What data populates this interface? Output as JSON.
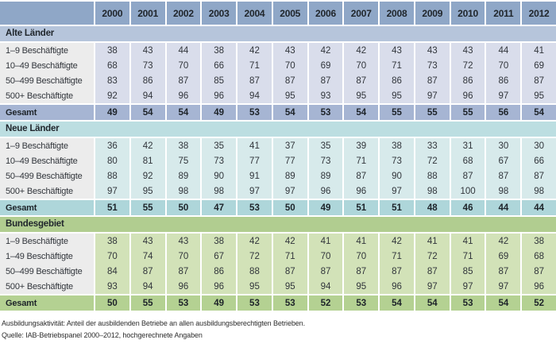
{
  "table": {
    "corner_label": "",
    "years": [
      "2000",
      "2001",
      "2002",
      "2003",
      "2004",
      "2005",
      "2006",
      "2007",
      "2008",
      "2009",
      "2010",
      "2011",
      "2012"
    ],
    "sections": [
      {
        "title": "Alte Länder",
        "theme": "blue",
        "rows": [
          {
            "label": "1–9 Beschäftigte",
            "values": [
              38,
              43,
              44,
              38,
              42,
              43,
              42,
              42,
              43,
              43,
              43,
              44,
              41
            ]
          },
          {
            "label": "10–49 Beschäftigte",
            "values": [
              68,
              73,
              70,
              66,
              71,
              70,
              69,
              70,
              71,
              73,
              72,
              70,
              69
            ]
          },
          {
            "label": "50–499 Beschäftigte",
            "values": [
              83,
              86,
              87,
              85,
              87,
              87,
              87,
              87,
              86,
              87,
              86,
              86,
              87
            ]
          },
          {
            "label": "500+ Beschäftigte",
            "values": [
              92,
              94,
              96,
              96,
              94,
              95,
              93,
              95,
              95,
              97,
              96,
              97,
              95
            ]
          }
        ],
        "total": {
          "label": "Gesamt",
          "values": [
            49,
            54,
            54,
            49,
            53,
            54,
            53,
            54,
            55,
            55,
            55,
            56,
            54
          ]
        }
      },
      {
        "title": "Neue Länder",
        "theme": "teal",
        "rows": [
          {
            "label": "1–9 Beschäftigte",
            "values": [
              36,
              42,
              38,
              35,
              41,
              37,
              35,
              39,
              38,
              33,
              31,
              30,
              30
            ]
          },
          {
            "label": "10–49 Beschäftigte",
            "values": [
              80,
              81,
              75,
              73,
              77,
              77,
              73,
              71,
              73,
              72,
              68,
              67,
              66
            ]
          },
          {
            "label": "50–499 Beschäftigte",
            "values": [
              88,
              92,
              89,
              90,
              91,
              89,
              89,
              87,
              90,
              88,
              87,
              87,
              87
            ]
          },
          {
            "label": "500+ Beschäftigte",
            "values": [
              97,
              95,
              98,
              98,
              97,
              97,
              96,
              96,
              97,
              98,
              100,
              98,
              98
            ]
          }
        ],
        "total": {
          "label": "Gesamt",
          "values": [
            51,
            55,
            50,
            47,
            53,
            50,
            49,
            51,
            51,
            48,
            46,
            44,
            44
          ]
        }
      },
      {
        "title": "Bundesgebiet",
        "theme": "green",
        "rows": [
          {
            "label": "1–9 Beschäftigte",
            "values": [
              38,
              43,
              43,
              38,
              42,
              42,
              41,
              41,
              42,
              41,
              41,
              42,
              38
            ]
          },
          {
            "label": "1–49 Beschäftigte",
            "values": [
              70,
              74,
              70,
              67,
              72,
              71,
              70,
              70,
              71,
              72,
              71,
              69,
              68
            ]
          },
          {
            "label": "50–499 Beschäftigte",
            "values": [
              84,
              87,
              87,
              86,
              88,
              87,
              87,
              87,
              87,
              87,
              85,
              87,
              87
            ]
          },
          {
            "label": "500+ Beschäftigte",
            "values": [
              93,
              94,
              96,
              96,
              95,
              95,
              94,
              95,
              96,
              97,
              97,
              97,
              96
            ]
          }
        ],
        "total": {
          "label": "Gesamt",
          "values": [
            50,
            55,
            53,
            49,
            53,
            53,
            52,
            53,
            54,
            54,
            53,
            54,
            52
          ]
        }
      }
    ]
  },
  "footnotes": {
    "definition": "Ausbildungsaktivität: Anteil der ausbildenden Betriebe an allen ausbildungsberechtigten Betrieben.",
    "source": "Quelle: IAB-Betriebspanel 2000–2012, hochgerechnete Angaben"
  },
  "colors": {
    "header_bg": "#8FA7C7",
    "label_bg": "#ECECEC",
    "separator": "#FFFFFF",
    "themes": {
      "blue": {
        "band": "#B6C5DB",
        "cell": "#D9DDEB",
        "total": "#A6B5D3"
      },
      "teal": {
        "band": "#BCDEE1",
        "cell": "#D7EAEB",
        "total": "#AED6DA"
      },
      "green": {
        "band": "#B1CD90",
        "cell": "#D2E2B8",
        "total": "#B4D192"
      }
    },
    "text": "#31353B",
    "text_bold": "#20262C"
  }
}
